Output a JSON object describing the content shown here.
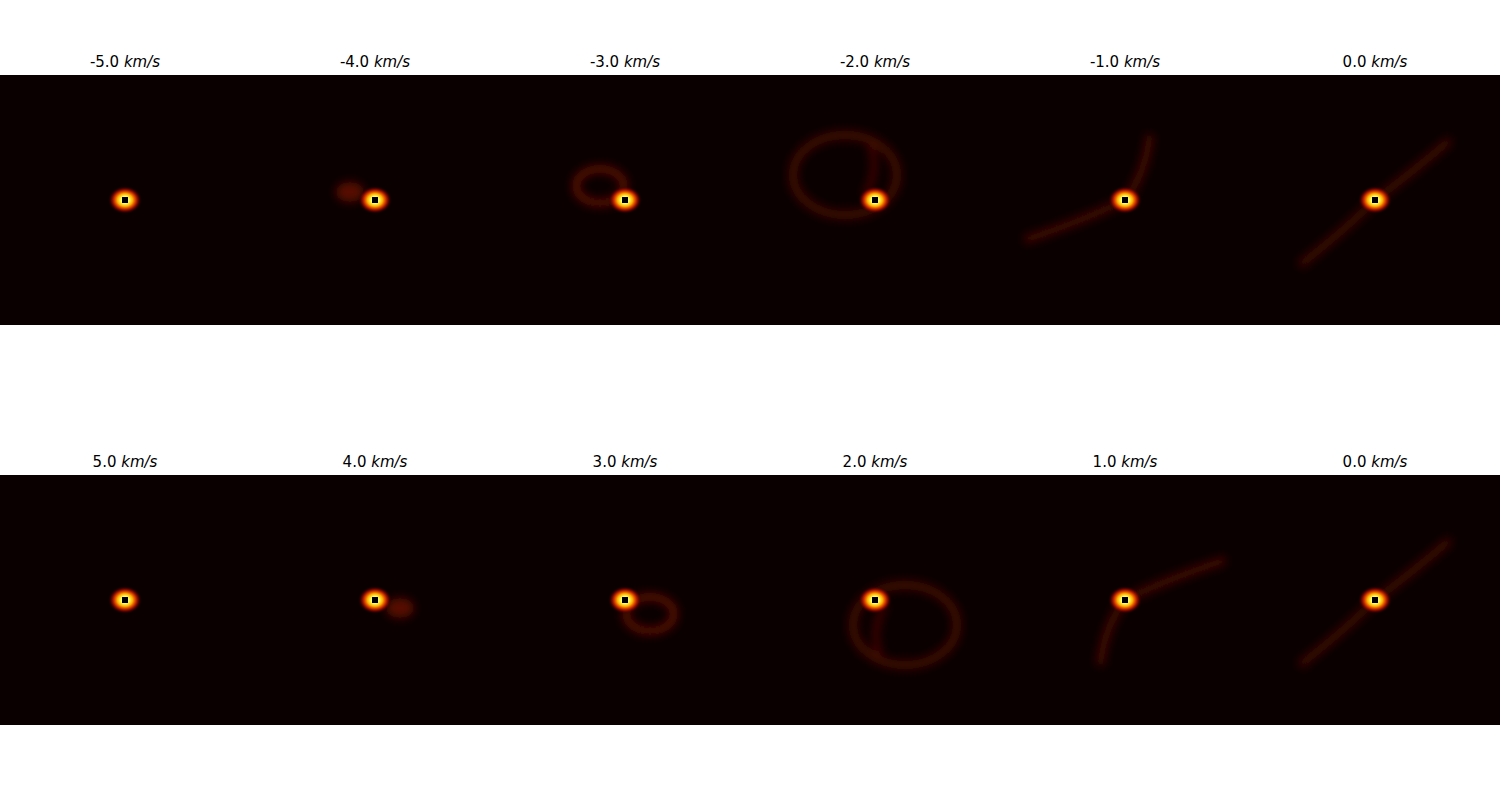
{
  "chart_data": {
    "type": "channel_maps",
    "unit": "km/s",
    "panels": [
      {
        "velocity": {
          "value": -5,
          "label": "-5.0"
        }
      },
      {
        "velocity": {
          "value": -4,
          "label": "-4.0"
        }
      },
      {
        "velocity": {
          "value": -3,
          "label": "-3.0"
        }
      },
      {
        "velocity": {
          "value": -2,
          "label": "-2.0"
        }
      },
      {
        "velocity": {
          "value": -1,
          "label": "-1.0"
        }
      },
      {
        "velocity": {
          "value": 0,
          "label": "0.0"
        }
      },
      {
        "velocity": {
          "value": 5,
          "label": "5.0"
        }
      },
      {
        "velocity": {
          "value": 4,
          "label": "4.0"
        }
      },
      {
        "velocity": {
          "value": 3,
          "label": "3.0"
        }
      },
      {
        "velocity": {
          "value": 2,
          "label": "2.0"
        }
      },
      {
        "velocity": {
          "value": 1,
          "label": "1.0"
        }
      },
      {
        "velocity": {
          "value": 0,
          "label": "0.0"
        }
      }
    ],
    "tick_labels": false
  }
}
